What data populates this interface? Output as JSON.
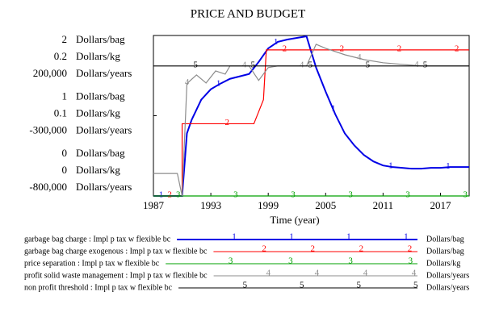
{
  "chart_data": {
    "type": "line",
    "title": "PRICE AND BUDGET",
    "x_label": "Time (year)",
    "xlim": [
      1987,
      2020
    ],
    "xticks": [
      1987,
      1993,
      1999,
      2005,
      2011,
      2017
    ],
    "yaxes": [
      {
        "unit": "Dollars/bag",
        "ylim": [
          0,
          2
        ],
        "yticks": [
          0,
          1,
          2
        ]
      },
      {
        "unit": "Dollars/kg",
        "ylim": [
          0,
          0.2
        ],
        "yticks": [
          0,
          0.1,
          0.2
        ]
      },
      {
        "unit": "Dollars/years",
        "ylim": [
          -800000,
          200000
        ],
        "yticks": [
          {
            "value": -800000,
            "label": "-800,000"
          },
          {
            "value": -300000,
            "label": "-300,000"
          },
          {
            "value": 200000,
            "label": "200,000"
          }
        ]
      }
    ],
    "series": [
      {
        "name": "garbage bag charge : Impl p tax w flexible bc",
        "marker": "1",
        "units": "Dollars/bag",
        "axis": 0,
        "color": "#0000e6",
        "x": [
          1987,
          1990,
          1990.5,
          1991,
          1992,
          1993,
          1994,
          1995,
          1996,
          1997,
          1998,
          1999,
          2000,
          2001,
          2002,
          2003,
          2004,
          2005,
          2006,
          2007,
          2008,
          2009,
          2010,
          2011,
          2012,
          2013,
          2014,
          2015,
          2016,
          2017,
          2018,
          2019,
          2020
        ],
        "values": [
          0,
          0,
          0.78,
          0.95,
          1.2,
          1.33,
          1.4,
          1.46,
          1.49,
          1.52,
          1.67,
          1.84,
          1.92,
          1.95,
          1.97,
          1.99,
          1.6,
          1.3,
          1.02,
          0.78,
          0.63,
          0.51,
          0.43,
          0.38,
          0.36,
          0.35,
          0.34,
          0.34,
          0.35,
          0.35,
          0.36,
          0.36,
          0.36
        ]
      },
      {
        "name": "garbage bag charge exogenous : Impl p tax w flexible bc",
        "marker": "2",
        "units": "Dollars/bag",
        "axis": 0,
        "color": "#ff0000",
        "x": [
          1987,
          1990,
          1990,
          1997.5,
          1998.5,
          1998.8,
          2020
        ],
        "values": [
          0,
          0,
          0.9,
          0.9,
          1.2,
          1.82,
          1.82
        ]
      },
      {
        "name": "price separation : Impl p tax w flexible bc",
        "marker": "3",
        "units": "Dollars/kg",
        "axis": 1,
        "color": "#00a000",
        "x": [
          1987,
          2020
        ],
        "values": [
          0,
          0
        ]
      },
      {
        "name": "profit solid waste management : Impl p tax w flexible bc",
        "marker": "4",
        "units": "Dollars/years",
        "axis": 2,
        "color": "#8c8c8c",
        "x": [
          1987,
          1989.5,
          1990,
          1990.5,
          1991.5,
          1992.5,
          1993.5,
          1994.5,
          1995,
          1997,
          1998,
          1999,
          2000,
          2003,
          2004,
          2005,
          2007,
          2009,
          2011,
          2013,
          2015,
          2020
        ],
        "values": [
          -660000,
          -660000,
          -800000,
          -100000,
          -46000,
          -96000,
          -21000,
          -41000,
          10000,
          10000,
          -80000,
          0,
          10000,
          10000,
          145000,
          120000,
          80000,
          50000,
          30000,
          20000,
          10000,
          10000
        ]
      },
      {
        "name": "non profit threshold : Impl p tax w flexible bc",
        "marker": "5",
        "units": "Dollars/years",
        "axis": 2,
        "color": "#000000",
        "x": [
          1987,
          2020
        ],
        "values": [
          10000,
          10000
        ]
      }
    ]
  }
}
